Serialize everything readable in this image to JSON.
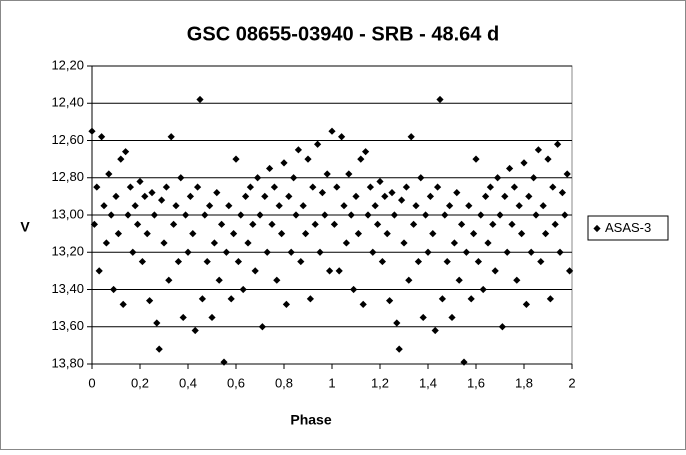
{
  "chart_data": {
    "type": "scatter",
    "title": "GSC 08655-03940 - SRB - 48.64 d",
    "x_label": "Phase",
    "y_label": "V",
    "xlim": [
      0,
      2
    ],
    "ylim": [
      12.2,
      13.8
    ],
    "y_inverted": true,
    "xticks": [
      0,
      {
        "value": 0.2,
        "label": "0,2"
      },
      {
        "value": 0.4,
        "label": "0,4"
      },
      {
        "value": 0.6,
        "label": "0,6"
      },
      {
        "value": 0.8,
        "label": "0,8"
      },
      1,
      {
        "value": 1.2,
        "label": "1,2"
      },
      {
        "value": 1.4,
        "label": "1,4"
      },
      {
        "value": 1.6,
        "label": "1,6"
      },
      {
        "value": 1.8,
        "label": "1,8"
      },
      2
    ],
    "yticks": [
      {
        "value": 12.2,
        "label": "12,20"
      },
      {
        "value": 12.4,
        "label": "12,40"
      },
      {
        "value": 12.6,
        "label": "12,60"
      },
      {
        "value": 12.8,
        "label": "12,80"
      },
      {
        "value": 13.0,
        "label": "13,00"
      },
      {
        "value": 13.2,
        "label": "13,20"
      },
      {
        "value": 13.4,
        "label": "13,40"
      },
      {
        "value": 13.6,
        "label": "13,60"
      },
      {
        "value": 13.8,
        "label": "13,80"
      }
    ],
    "grid": true,
    "legend": "right",
    "series": [
      {
        "name": "ASAS-3",
        "color": "#000000",
        "x": [
          0,
          0.01,
          0.02,
          0.03,
          0.04,
          0.05,
          0.06,
          0.07,
          0.08,
          0.09,
          0.1,
          0.11,
          0.12,
          0.13,
          0.14,
          0.15,
          0.16,
          0.17,
          0.18,
          0.19,
          0.2,
          0.21,
          0.22,
          0.23,
          0.24,
          0.25,
          0.26,
          0.27,
          0.28,
          0.29,
          0.3,
          0.31,
          0.32,
          0.33,
          0.34,
          0.35,
          0.36,
          0.37,
          0.38,
          0.39,
          0.4,
          0.41,
          0.42,
          0.43,
          0.44,
          0.45,
          0.46,
          0.47,
          0.48,
          0.49,
          0.5,
          0.51,
          0.52,
          0.53,
          0.54,
          0.55,
          0.56,
          0.57,
          0.58,
          0.59,
          0.6,
          0.61,
          0.62,
          0.63,
          0.64,
          0.65,
          0.66,
          0.67,
          0.68,
          0.69,
          0.7,
          0.71,
          0.72,
          0.73,
          0.74,
          0.75,
          0.76,
          0.77,
          0.78,
          0.79,
          0.8,
          0.81,
          0.82,
          0.83,
          0.84,
          0.85,
          0.86,
          0.87,
          0.88,
          0.89,
          0.9,
          0.91,
          0.92,
          0.93,
          0.94,
          0.95,
          0.96,
          0.97,
          0.98,
          0.99,
          1,
          1.01,
          1.02,
          1.03,
          1.04,
          1.05,
          1.06,
          1.07,
          1.08,
          1.09,
          1.1,
          1.11,
          1.12,
          1.13,
          1.14,
          1.15,
          1.16,
          1.17,
          1.18,
          1.19,
          1.2,
          1.21,
          1.22,
          1.23,
          1.24,
          1.25,
          1.26,
          1.27,
          1.28,
          1.29,
          1.3,
          1.31,
          1.32,
          1.33,
          1.34,
          1.35,
          1.36,
          1.37,
          1.38,
          1.39,
          1.4,
          1.41,
          1.42,
          1.43,
          1.44,
          1.45,
          1.46,
          1.47,
          1.48,
          1.49,
          1.5,
          1.51,
          1.52,
          1.53,
          1.54,
          1.55,
          1.56,
          1.57,
          1.58,
          1.59,
          1.6,
          1.61,
          1.62,
          1.63,
          1.64,
          1.65,
          1.66,
          1.67,
          1.68,
          1.69,
          1.7,
          1.71,
          1.72,
          1.73,
          1.74,
          1.75,
          1.76,
          1.77,
          1.78,
          1.79,
          1.8,
          1.81,
          1.82,
          1.83,
          1.84,
          1.85,
          1.86,
          1.87,
          1.88,
          1.89,
          1.9,
          1.91,
          1.92,
          1.93,
          1.94,
          1.95,
          1.96,
          1.97,
          1.98,
          1.99
        ],
        "values": [
          12.55,
          13.05,
          12.85,
          13.3,
          12.58,
          12.95,
          13.15,
          12.78,
          13.0,
          13.4,
          12.9,
          13.1,
          12.7,
          13.48,
          12.66,
          13.0,
          12.85,
          13.2,
          12.95,
          13.05,
          12.82,
          13.25,
          12.9,
          13.1,
          13.46,
          12.88,
          13.0,
          13.58,
          13.72,
          12.92,
          13.15,
          12.85,
          13.35,
          12.58,
          13.05,
          12.95,
          13.25,
          12.8,
          13.55,
          13.0,
          13.2,
          12.9,
          13.1,
          13.62,
          12.85,
          12.38,
          13.45,
          13.0,
          13.25,
          12.95,
          13.55,
          13.15,
          12.88,
          13.35,
          13.05,
          13.79,
          13.2,
          12.95,
          13.45,
          13.1,
          12.7,
          13.25,
          13.0,
          13.4,
          12.9,
          13.15,
          12.85,
          13.05,
          13.3,
          12.8,
          13.0,
          13.6,
          12.9,
          13.2,
          12.75,
          13.05,
          12.85,
          13.35,
          12.95,
          13.1,
          12.72,
          13.48,
          12.9,
          13.2,
          12.8,
          13.0,
          12.65,
          13.25,
          12.95,
          13.1,
          12.7,
          13.45,
          12.85,
          13.05,
          12.62,
          13.2,
          12.88,
          13.0,
          12.78,
          13.3,
          12.55,
          13.05,
          12.85,
          13.3,
          12.58,
          12.95,
          13.15,
          12.78,
          13.0,
          13.4,
          12.9,
          13.1,
          12.7,
          13.48,
          12.66,
          13.0,
          12.85,
          13.2,
          12.95,
          13.05,
          12.82,
          13.25,
          12.9,
          13.1,
          13.46,
          12.88,
          13.0,
          13.58,
          13.72,
          12.92,
          13.15,
          12.85,
          13.35,
          12.58,
          13.05,
          12.95,
          13.25,
          12.8,
          13.55,
          13.0,
          13.2,
          12.9,
          13.1,
          13.62,
          12.85,
          12.38,
          13.45,
          13.0,
          13.25,
          12.95,
          13.55,
          13.15,
          12.88,
          13.35,
          13.05,
          13.79,
          13.2,
          12.95,
          13.45,
          13.1,
          12.7,
          13.25,
          13.0,
          13.4,
          12.9,
          13.15,
          12.85,
          13.05,
          13.3,
          12.8,
          13.0,
          13.6,
          12.9,
          13.2,
          12.75,
          13.05,
          12.85,
          13.35,
          12.95,
          13.1,
          12.72,
          13.48,
          12.9,
          13.2,
          12.8,
          13.0,
          12.65,
          13.25,
          12.95,
          13.1,
          12.7,
          13.45,
          12.85,
          13.05,
          12.62,
          13.2,
          12.88,
          13.0,
          12.78,
          13.3
        ]
      }
    ]
  }
}
